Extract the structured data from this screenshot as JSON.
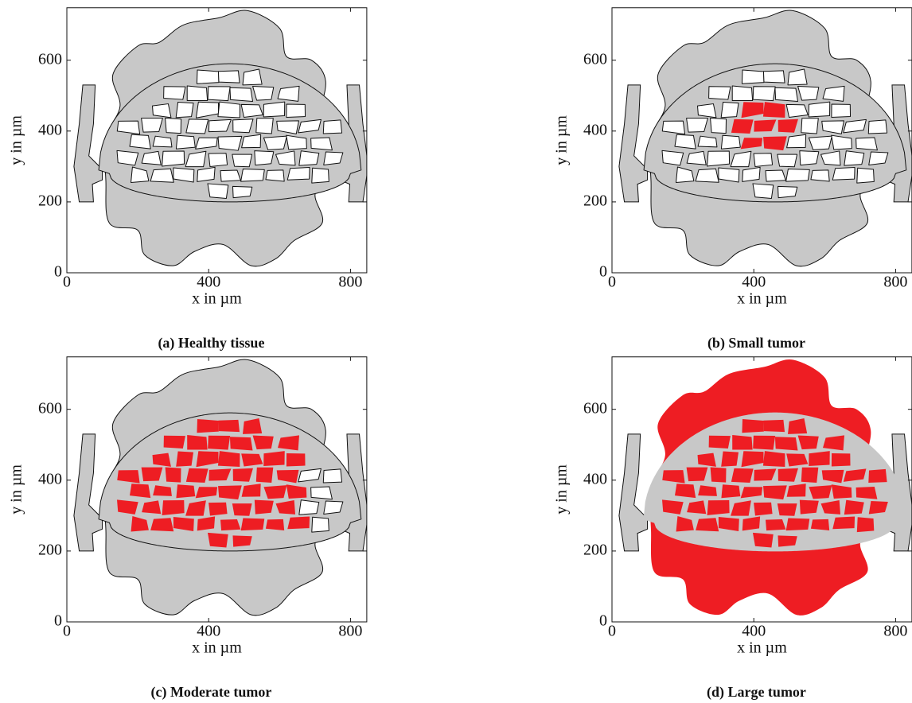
{
  "chart_data": [
    {
      "type": "region",
      "caption": "(a) Healthy tissue",
      "xlabel": "x in µm",
      "ylabel": "y in µm",
      "xlim": [
        0,
        846
      ],
      "ylim": [
        0,
        748
      ],
      "xticks": [
        0,
        400,
        800
      ],
      "yticks": [
        0,
        200,
        400,
        600
      ]
    },
    {
      "type": "region",
      "caption": "(b) Small tumor",
      "xlabel": "x in µm",
      "ylabel": "y in µm",
      "xlim": [
        0,
        846
      ],
      "ylim": [
        0,
        748
      ],
      "xticks": [
        0,
        400,
        800
      ],
      "yticks": [
        0,
        200,
        400,
        600
      ]
    },
    {
      "type": "region",
      "caption": "(c) Moderate tumor",
      "xlabel": "x in µm",
      "ylabel": "y in µm",
      "xlim": [
        0,
        846
      ],
      "ylim": [
        0,
        748
      ],
      "xticks": [
        0,
        400,
        800
      ],
      "yticks": [
        0,
        200,
        400,
        600
      ]
    },
    {
      "type": "region",
      "caption": "(d) Large tumor",
      "xlabel": "x in µm",
      "ylabel": "y in µm",
      "xlim": [
        0,
        846
      ],
      "ylim": [
        0,
        748
      ],
      "xticks": [
        0,
        400,
        800
      ],
      "yticks": [
        0,
        200,
        400,
        600
      ]
    }
  ]
}
